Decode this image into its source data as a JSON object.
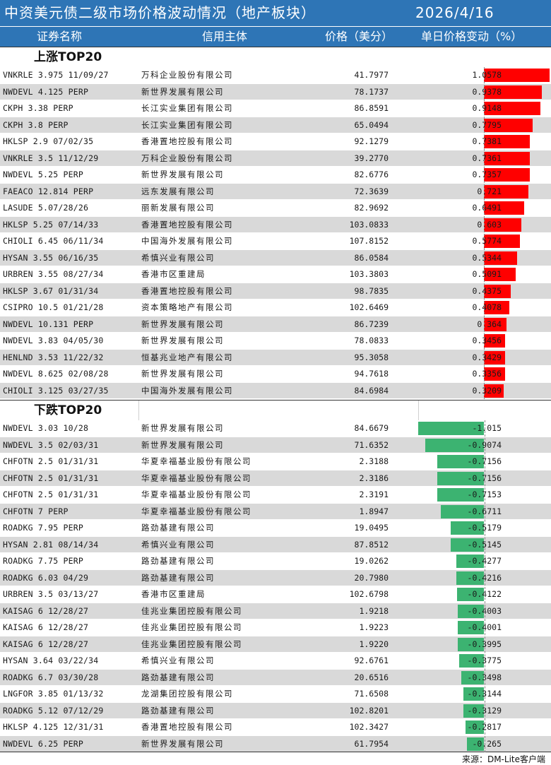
{
  "header": {
    "title": "中资美元债二级市场价格波动情况（地产板块）",
    "date": "2026/4/16"
  },
  "columns": {
    "code": "证券名称",
    "issuer": "信用主体",
    "price": "价格（美分）",
    "change": "单日价格变动（%）"
  },
  "sections": {
    "up_label": "上涨TOP20",
    "down_label": "下跌TOP20"
  },
  "colors": {
    "up": "#ff0000",
    "down": "#3cb371",
    "header": "#2e75b6"
  },
  "up_rows": [
    {
      "code": "VNKRLE 3.975 11/09/27",
      "issuer": "万科企业股份有限公司",
      "price": "41.7977",
      "change": "1.0578",
      "value": 1.0578
    },
    {
      "code": "NWDEVL 4.125 PERP",
      "issuer": "新世界发展有限公司",
      "price": "78.1737",
      "change": "0.9378",
      "value": 0.9378
    },
    {
      "code": "CKPH 3.38 PERP",
      "issuer": "长江实业集团有限公司",
      "price": "86.8591",
      "change": "0.9148",
      "value": 0.9148
    },
    {
      "code": "CKPH 3.8 PERP",
      "issuer": "长江实业集团有限公司",
      "price": "65.0494",
      "change": "0.7795",
      "value": 0.7795
    },
    {
      "code": "HKLSP 2.9 07/02/35",
      "issuer": "香港置地控股有限公司",
      "price": "92.1279",
      "change": "0.7381",
      "value": 0.7381
    },
    {
      "code": "VNKRLE 3.5 11/12/29",
      "issuer": "万科企业股份有限公司",
      "price": "39.2770",
      "change": "0.7361",
      "value": 0.7361
    },
    {
      "code": "NWDEVL 5.25 PERP",
      "issuer": "新世界发展有限公司",
      "price": "82.6776",
      "change": "0.7357",
      "value": 0.7357
    },
    {
      "code": "FAEACO 12.814 PERP",
      "issuer": "远东发展有限公司",
      "price": "72.3639",
      "change": "0.721",
      "value": 0.721
    },
    {
      "code": "LASUDE 5.07/28/26",
      "issuer": "丽新发展有限公司",
      "price": "82.9692",
      "change": "0.6491",
      "value": 0.6491
    },
    {
      "code": "HKLSP 5.25 07/14/33",
      "issuer": "香港置地控股有限公司",
      "price": "103.0833",
      "change": "0.603",
      "value": 0.603
    },
    {
      "code": "CHIOLI 6.45 06/11/34",
      "issuer": "中国海外发展有限公司",
      "price": "107.8152",
      "change": "0.5774",
      "value": 0.5774
    },
    {
      "code": "HYSAN 3.55 06/16/35",
      "issuer": "希慎兴业有限公司",
      "price": "86.0584",
      "change": "0.5344",
      "value": 0.5344
    },
    {
      "code": "URBREN 3.55 08/27/34",
      "issuer": "香港市区重建局",
      "price": "103.3803",
      "change": "0.5091",
      "value": 0.5091
    },
    {
      "code": "HKLSP 3.67 01/31/34",
      "issuer": "香港置地控股有限公司",
      "price": "98.7835",
      "change": "0.4375",
      "value": 0.4375
    },
    {
      "code": "CSIPRO 10.5 01/21/28",
      "issuer": "资本策略地产有限公司",
      "price": "102.6469",
      "change": "0.4078",
      "value": 0.4078
    },
    {
      "code": "NWDEVL 10.131 PERP",
      "issuer": "新世界发展有限公司",
      "price": "86.7239",
      "change": "0.364",
      "value": 0.364
    },
    {
      "code": "NWDEVL 3.83 04/05/30",
      "issuer": "新世界发展有限公司",
      "price": "78.0833",
      "change": "0.3456",
      "value": 0.3456
    },
    {
      "code": "HENLND 3.53 11/22/32",
      "issuer": "恒基兆业地产有限公司",
      "price": "95.3058",
      "change": "0.3429",
      "value": 0.3429
    },
    {
      "code": "NWDEVL 8.625 02/08/28",
      "issuer": "新世界发展有限公司",
      "price": "94.7618",
      "change": "0.3356",
      "value": 0.3356
    },
    {
      "code": "CHIOLI 3.125 03/27/35",
      "issuer": "中国海外发展有限公司",
      "price": "84.6984",
      "change": "0.3209",
      "value": 0.3209
    }
  ],
  "down_rows": [
    {
      "code": "NWDEVL 3.03 10/28",
      "issuer": "新世界发展有限公司",
      "price": "84.6679",
      "change": "-1.015",
      "value": -1.015
    },
    {
      "code": "NWDEVL 3.5 02/03/31",
      "issuer": "新世界发展有限公司",
      "price": "71.6352",
      "change": "-0.9074",
      "value": -0.9074
    },
    {
      "code": "CHFOTN 2.5 01/31/31",
      "issuer": "华夏幸福基业股份有限公司",
      "price": "2.3188",
      "change": "-0.7156",
      "value": -0.7156
    },
    {
      "code": "CHFOTN 2.5 01/31/31",
      "issuer": "华夏幸福基业股份有限公司",
      "price": "2.3186",
      "change": "-0.7156",
      "value": -0.7156
    },
    {
      "code": "CHFOTN 2.5 01/31/31",
      "issuer": "华夏幸福基业股份有限公司",
      "price": "2.3191",
      "change": "-0.7153",
      "value": -0.7153
    },
    {
      "code": "CHFOTN 7 PERP",
      "issuer": "华夏幸福基业股份有限公司",
      "price": "1.8947",
      "change": "-0.6711",
      "value": -0.6711
    },
    {
      "code": "ROADKG 7.95 PERP",
      "issuer": "路劲基建有限公司",
      "price": "19.0495",
      "change": "-0.5179",
      "value": -0.5179
    },
    {
      "code": "HYSAN 2.81 08/14/34",
      "issuer": "希慎兴业有限公司",
      "price": "87.8512",
      "change": "-0.5145",
      "value": -0.5145
    },
    {
      "code": "ROADKG 7.75 PERP",
      "issuer": "路劲基建有限公司",
      "price": "19.0262",
      "change": "-0.4277",
      "value": -0.4277
    },
    {
      "code": "ROADKG 6.03 04/29",
      "issuer": "路劲基建有限公司",
      "price": "20.7980",
      "change": "-0.4216",
      "value": -0.4216
    },
    {
      "code": "URBREN 3.5 03/13/27",
      "issuer": "香港市区重建局",
      "price": "102.6798",
      "change": "-0.4122",
      "value": -0.4122
    },
    {
      "code": "KAISAG 6 12/28/27",
      "issuer": "佳兆业集团控股有限公司",
      "price": "1.9218",
      "change": "-0.4003",
      "value": -0.4003
    },
    {
      "code": "KAISAG 6 12/28/27",
      "issuer": "佳兆业集团控股有限公司",
      "price": "1.9223",
      "change": "-0.4001",
      "value": -0.4001
    },
    {
      "code": "KAISAG 6 12/28/27",
      "issuer": "佳兆业集团控股有限公司",
      "price": "1.9220",
      "change": "-0.3995",
      "value": -0.3995
    },
    {
      "code": "HYSAN 3.64 03/22/34",
      "issuer": "希慎兴业有限公司",
      "price": "92.6761",
      "change": "-0.3775",
      "value": -0.3775
    },
    {
      "code": "ROADKG 6.7 03/30/28",
      "issuer": "路劲基建有限公司",
      "price": "20.6516",
      "change": "-0.3498",
      "value": -0.3498
    },
    {
      "code": "LNGFOR 3.85 01/13/32",
      "issuer": "龙湖集团控股有限公司",
      "price": "71.6508",
      "change": "-0.3144",
      "value": -0.3144
    },
    {
      "code": "ROADKG 5.12 07/12/29",
      "issuer": "路劲基建有限公司",
      "price": "102.8201",
      "change": "-0.3129",
      "value": -0.3129
    },
    {
      "code": "HKLSP 4.125 12/31/31",
      "issuer": "香港置地控股有限公司",
      "price": "102.3427",
      "change": "-0.2817",
      "value": -0.2817
    },
    {
      "code": "NWDEVL 6.25 PERP",
      "issuer": "新世界发展有限公司",
      "price": "61.7954",
      "change": "-0.265",
      "value": -0.265
    }
  ],
  "footer": {
    "source": "来源：DM-Lite客户端"
  }
}
